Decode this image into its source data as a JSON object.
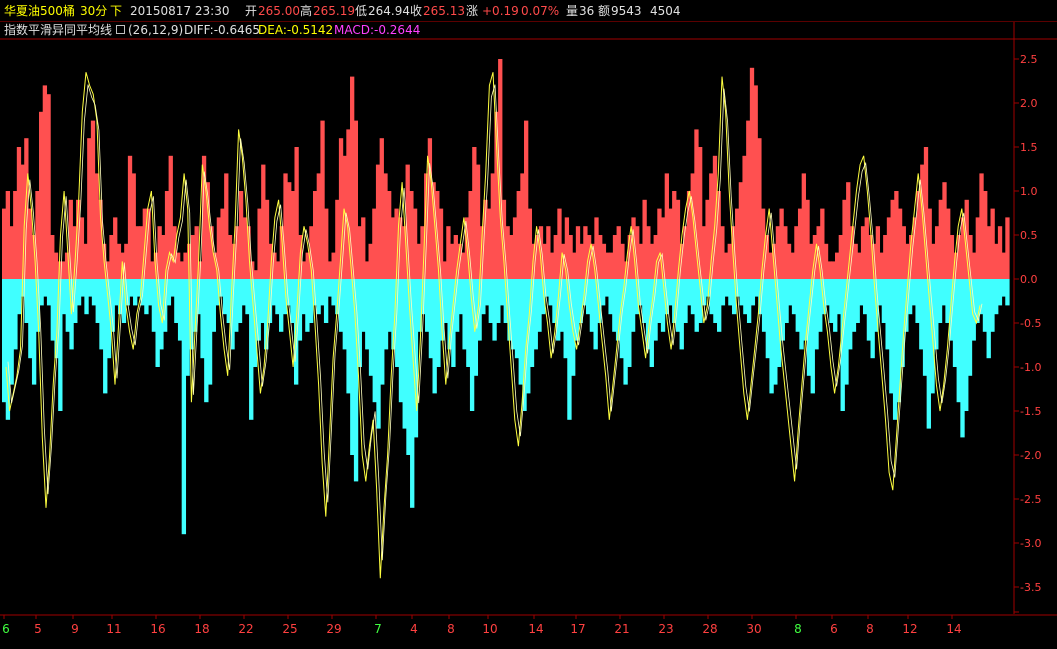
{
  "header": {
    "name": "华夏油500桶",
    "period": "30分",
    "direction": "下",
    "datetime": "20150817 23:30",
    "open_label": "开",
    "open": "265.00",
    "high_label": "高",
    "high": "265.19",
    "low_label": "低",
    "low": "264.94",
    "close_label": "收",
    "close": "265.13",
    "change_label": "涨",
    "change": "+0.19",
    "change_pct": "0.07%",
    "volume_label": "量",
    "volume": "36",
    "amount_label": "额",
    "amount": "9543",
    "extra": "4504"
  },
  "indicator": {
    "name": "指数平滑异同平均线",
    "window_icon": "window-icon",
    "params": "(26,12,9)",
    "diff": "DIFF:-0.6465",
    "dea": "DEA:-0.5142",
    "macd": "MACD:-0.2644"
  },
  "colors": {
    "positive": "#ff5050",
    "negative": "#40ffff",
    "line": "#ffff40",
    "axis": "#a00000",
    "date_default": "#ff4040",
    "date_month": "#40ff40"
  },
  "chart_data": {
    "type": "bar",
    "title": "",
    "ylim": [
      -3.7,
      2.7
    ],
    "yticks": [
      "2.5",
      "2.0",
      "1.5",
      "1.0",
      "0.5",
      "0.0",
      "-0.5",
      "-1.0",
      "-1.5",
      "-2.0",
      "-2.5",
      "-3.0",
      "-3.5"
    ],
    "x_labels": [
      {
        "text": "6",
        "month": true
      },
      {
        "text": "5"
      },
      {
        "text": "9"
      },
      {
        "text": "11"
      },
      {
        "text": "16"
      },
      {
        "text": "18"
      },
      {
        "text": "22"
      },
      {
        "text": "25"
      },
      {
        "text": "29"
      },
      {
        "text": "7",
        "month": true
      },
      {
        "text": "4"
      },
      {
        "text": "8"
      },
      {
        "text": "10"
      },
      {
        "text": "14"
      },
      {
        "text": "17"
      },
      {
        "text": "21"
      },
      {
        "text": "23"
      },
      {
        "text": "28"
      },
      {
        "text": "30"
      },
      {
        "text": "8",
        "month": true
      },
      {
        "text": "6"
      },
      {
        "text": "8"
      },
      {
        "text": "12"
      },
      {
        "text": "14"
      }
    ],
    "series": [
      {
        "values": [
          0.8,
          1.0,
          0.6,
          1.0,
          1.5,
          1.3,
          1.6,
          0.8,
          0.5,
          1.0,
          1.9,
          2.2,
          2.1,
          0.5,
          0.3,
          0.2,
          0.2,
          0.3,
          0.9,
          0.6,
          0.9,
          0.7,
          0.4,
          1.6,
          1.8,
          1.2,
          0.9,
          0.4,
          0.2,
          0.5,
          0.7,
          0.4,
          0.3,
          0.4,
          1.4,
          1.2,
          0.6,
          0.6,
          0.8,
          0.8,
          0.2,
          0.3,
          0.6,
          0.5,
          1.0,
          1.4,
          0.6,
          0.3,
          0.2,
          0.3,
          0.4,
          0.5,
          0.6,
          0.2,
          1.4,
          1.1,
          0.6,
          0.3,
          0.7,
          0.8,
          1.2,
          0.5,
          0.4,
          0.6,
          1.0,
          0.7,
          0.6,
          0.2,
          0.1,
          0.8,
          1.3,
          0.9,
          0.4,
          0.3,
          0.2,
          0.6,
          1.2,
          1.1,
          1.0,
          1.5,
          0.5,
          0.2,
          0.3,
          0.6,
          1.0,
          1.2,
          1.8,
          0.8,
          0.2,
          0.3,
          0.9,
          1.6,
          1.4,
          1.7,
          2.3,
          1.8,
          0.6,
          0.7,
          0.2,
          0.4,
          0.8,
          1.3,
          1.6,
          1.2,
          1.0,
          0.7,
          0.8,
          0.7,
          0.6,
          1.3,
          1.0,
          0.8,
          0.4,
          0.6,
          1.2,
          1.6,
          1.1,
          1.0,
          0.8,
          0.2,
          0.6,
          0.4,
          0.5,
          0.4,
          0.3,
          0.7,
          1.0,
          1.5,
          1.3,
          0.6,
          0.9,
          0.8,
          1.2,
          1.9,
          2.5,
          0.9,
          0.6,
          0.5,
          0.7,
          1.0,
          1.2,
          1.8,
          0.8,
          0.4,
          0.5,
          0.6,
          0.4,
          0.6,
          0.3,
          0.5,
          0.8,
          0.4,
          0.7,
          0.5,
          0.3,
          0.6,
          0.4,
          0.6,
          0.5,
          0.4,
          0.7,
          0.5,
          0.4,
          0.3,
          0.3,
          0.5,
          0.6,
          0.4,
          0.2,
          0.5,
          0.7,
          0.6,
          0.4,
          0.9,
          0.6,
          0.4,
          0.5,
          0.8,
          0.7,
          1.2,
          0.8,
          1.0,
          0.9,
          0.4,
          0.6,
          1.0,
          1.2,
          1.7,
          1.5,
          0.6,
          0.9,
          1.2,
          1.4,
          1.0,
          0.6,
          0.3,
          0.4,
          0.6,
          0.8,
          1.1,
          1.4,
          1.8,
          2.4,
          2.2,
          1.6,
          0.8,
          0.5,
          0.3,
          0.4,
          0.6,
          0.8,
          0.6,
          0.4,
          0.3,
          0.6,
          0.8,
          1.2,
          0.9,
          0.4,
          0.5,
          0.6,
          0.8,
          0.4,
          0.2,
          0.2,
          0.3,
          0.5,
          0.9,
          1.1,
          0.6,
          0.4,
          0.3,
          0.6,
          0.7,
          0.5,
          0.4,
          0.6,
          0.3,
          0.5,
          0.7,
          0.9,
          1.0,
          0.8,
          0.6,
          0.4,
          0.5,
          0.7,
          1.0,
          1.3,
          1.5,
          0.8,
          0.4,
          0.6,
          0.9,
          1.1,
          0.8,
          0.5,
          0.3,
          0.5,
          0.7,
          0.9,
          0.5,
          0.3,
          0.7,
          1.2,
          1.0,
          0.6,
          0.8,
          0.4,
          0.6,
          0.3,
          0.7
        ],
        "name": ""
      },
      {
        "values": [
          -1.4,
          -1.6,
          -1.2,
          -0.8,
          -0.4,
          -0.2,
          -0.5,
          -0.9,
          -1.2,
          -0.6,
          -0.3,
          -0.2,
          -0.3,
          -0.7,
          -0.9,
          -1.5,
          -0.4,
          -0.6,
          -0.8,
          -0.5,
          -0.3,
          -0.2,
          -0.4,
          -0.2,
          -0.3,
          -0.5,
          -0.8,
          -1.3,
          -0.9,
          -0.6,
          -0.3,
          -0.4,
          -0.5,
          -0.3,
          -0.2,
          -0.3,
          -0.2,
          -0.3,
          -0.4,
          -0.3,
          -0.6,
          -1.0,
          -0.8,
          -0.6,
          -0.3,
          -0.2,
          -0.5,
          -0.7,
          -2.9,
          -1.1,
          -0.8,
          -0.6,
          -0.4,
          -0.9,
          -1.4,
          -1.2,
          -0.6,
          -0.3,
          -0.2,
          -0.4,
          -0.5,
          -0.8,
          -0.6,
          -0.5,
          -0.3,
          -0.4,
          -1.6,
          -1.0,
          -0.7,
          -0.5,
          -0.8,
          -0.5,
          -0.3,
          -0.4,
          -0.6,
          -0.4,
          -0.3,
          -0.5,
          -1.2,
          -0.7,
          -0.4,
          -0.6,
          -0.5,
          -0.3,
          -0.4,
          -0.3,
          -0.5,
          -0.2,
          -0.3,
          -0.4,
          -0.6,
          -0.8,
          -1.3,
          -2.0,
          -2.3,
          -1.0,
          -0.6,
          -0.8,
          -1.1,
          -1.4,
          -1.7,
          -1.2,
          -0.8,
          -0.6,
          -0.8,
          -1.0,
          -1.4,
          -1.7,
          -2.0,
          -2.6,
          -1.8,
          -0.6,
          -0.4,
          -0.6,
          -0.9,
          -1.3,
          -1.0,
          -0.7,
          -0.5,
          -0.8,
          -1.0,
          -0.6,
          -0.4,
          -0.8,
          -1.0,
          -1.5,
          -1.1,
          -0.7,
          -0.4,
          -0.3,
          -0.5,
          -0.7,
          -0.5,
          -0.3,
          -0.5,
          -0.7,
          -0.8,
          -0.9,
          -1.2,
          -1.5,
          -1.3,
          -1.0,
          -0.8,
          -0.6,
          -0.4,
          -0.2,
          -0.3,
          -0.5,
          -0.7,
          -0.6,
          -0.9,
          -1.6,
          -1.1,
          -0.7,
          -0.5,
          -0.3,
          -0.4,
          -0.6,
          -0.8,
          -0.5,
          -0.3,
          -0.2,
          -0.4,
          -0.6,
          -0.7,
          -0.9,
          -1.2,
          -1.0,
          -0.6,
          -0.4,
          -0.3,
          -0.5,
          -0.8,
          -1.0,
          -0.7,
          -0.5,
          -0.6,
          -0.4,
          -0.3,
          -0.5,
          -0.6,
          -0.8,
          -0.5,
          -0.3,
          -0.4,
          -0.6,
          -0.5,
          -0.3,
          -0.2,
          -0.4,
          -0.5,
          -0.6,
          -0.3,
          -0.2,
          -0.3,
          -0.4,
          -0.2,
          -0.3,
          -0.4,
          -0.5,
          -0.3,
          -0.2,
          -0.4,
          -0.6,
          -0.9,
          -1.3,
          -1.2,
          -1.0,
          -0.7,
          -0.5,
          -0.3,
          -0.4,
          -0.6,
          -0.8,
          -0.7,
          -1.1,
          -1.3,
          -0.8,
          -0.6,
          -0.4,
          -0.3,
          -0.5,
          -0.6,
          -0.4,
          -1.5,
          -1.2,
          -0.8,
          -0.6,
          -0.5,
          -0.3,
          -0.4,
          -0.7,
          -0.9,
          -0.6,
          -0.3,
          -0.5,
          -0.8,
          -1.3,
          -1.6,
          -1.4,
          -1.0,
          -0.6,
          -0.4,
          -0.3,
          -0.5,
          -0.8,
          -1.1,
          -1.7,
          -1.3,
          -0.8,
          -0.5,
          -0.3,
          -0.5,
          -0.7,
          -1.0,
          -1.4,
          -1.8,
          -1.5,
          -1.1,
          -0.7,
          -0.5,
          -0.4,
          -0.6,
          -0.9,
          -0.6,
          -0.4,
          -0.3,
          -0.2,
          -0.3
        ],
        "name": ""
      }
    ],
    "line": [
      -1.0,
      -1.5,
      -1.3,
      -1.1,
      -0.8,
      0.6,
      1.2,
      0.8,
      0.2,
      -0.6,
      -1.8,
      -2.6,
      -2.0,
      -1.2,
      -0.6,
      0.5,
      1.0,
      0.3,
      -0.4,
      0.2,
      0.9,
      1.9,
      2.35,
      2.2,
      2.1,
      1.8,
      0.7,
      0.2,
      -0.2,
      -0.6,
      -1.2,
      -0.5,
      0.2,
      -0.3,
      -0.6,
      -0.8,
      -0.4,
      -0.2,
      0.3,
      0.8,
      1.0,
      0.2,
      -0.3,
      -0.5,
      0.1,
      0.3,
      0.2,
      0.5,
      0.7,
      1.2,
      0.8,
      -1.4,
      -0.6,
      0.2,
      1.3,
      1.0,
      0.6,
      0.3,
      0.1,
      -0.4,
      -0.8,
      -1.1,
      -0.2,
      0.6,
      1.7,
      1.4,
      0.9,
      0.2,
      -0.3,
      -0.8,
      -1.3,
      -1.0,
      -0.5,
      0.2,
      0.7,
      0.9,
      0.4,
      -0.2,
      -0.6,
      -1.0,
      -0.4,
      0.3,
      0.6,
      0.4,
      0.1,
      -0.5,
      -1.2,
      -2.1,
      -2.7,
      -1.8,
      -0.9,
      -0.4,
      0.2,
      0.8,
      0.6,
      0.1,
      -0.4,
      -1.1,
      -2.0,
      -2.3,
      -1.9,
      -1.6,
      -2.4,
      -3.4,
      -2.6,
      -2.0,
      -1.1,
      -0.4,
      0.6,
      1.1,
      0.4,
      -0.3,
      -0.9,
      -1.5,
      -0.7,
      0.3,
      1.4,
      1.1,
      0.6,
      0.1,
      -0.6,
      -1.2,
      -0.7,
      -0.3,
      0.1,
      0.4,
      0.7,
      0.3,
      -0.2,
      -0.6,
      -0.3,
      0.5,
      1.2,
      2.2,
      2.35,
      1.5,
      0.7,
      0.2,
      -0.4,
      -1.0,
      -1.6,
      -1.9,
      -1.4,
      -0.8,
      -0.4,
      0.2,
      0.6,
      0.3,
      -0.2,
      -0.5,
      -0.9,
      -0.6,
      -0.2,
      0.3,
      0.1,
      -0.3,
      -0.6,
      -0.8,
      -0.5,
      -0.2,
      0.2,
      0.4,
      0.1,
      -0.3,
      -0.7,
      -1.1,
      -1.6,
      -1.2,
      -0.8,
      -0.4,
      -0.1,
      0.3,
      0.6,
      0.2,
      -0.3,
      -0.6,
      -0.9,
      -0.5,
      -0.2,
      0.2,
      0.3,
      -0.1,
      -0.5,
      -0.8,
      -0.4,
      0.1,
      0.5,
      0.8,
      1.0,
      0.7,
      0.3,
      -0.1,
      -0.5,
      -0.3,
      0.2,
      0.6,
      1.2,
      2.3,
      1.9,
      1.0,
      0.3,
      -0.3,
      -0.8,
      -1.3,
      -1.6,
      -1.2,
      -0.8,
      -0.4,
      0.1,
      0.5,
      0.8,
      0.3,
      -0.2,
      -0.7,
      -1.1,
      -1.5,
      -1.9,
      -2.3,
      -1.7,
      -1.2,
      -0.7,
      -0.3,
      0.1,
      0.4,
      0.1,
      -0.3,
      -0.6,
      -1.0,
      -1.3,
      -1.0,
      -0.6,
      -0.2,
      0.2,
      0.6,
      1.0,
      1.3,
      1.4,
      1.0,
      0.5,
      -0.1,
      -0.6,
      -1.1,
      -1.6,
      -2.2,
      -2.4,
      -1.8,
      -1.2,
      -0.6,
      -0.1,
      0.4,
      0.8,
      1.2,
      0.8,
      0.3,
      -0.2,
      -0.7,
      -1.2,
      -1.5,
      -1.2,
      -0.8,
      -0.3,
      0.2,
      0.6,
      0.8,
      0.4,
      0.0,
      -0.4,
      -0.5,
      -0.3
    ]
  }
}
